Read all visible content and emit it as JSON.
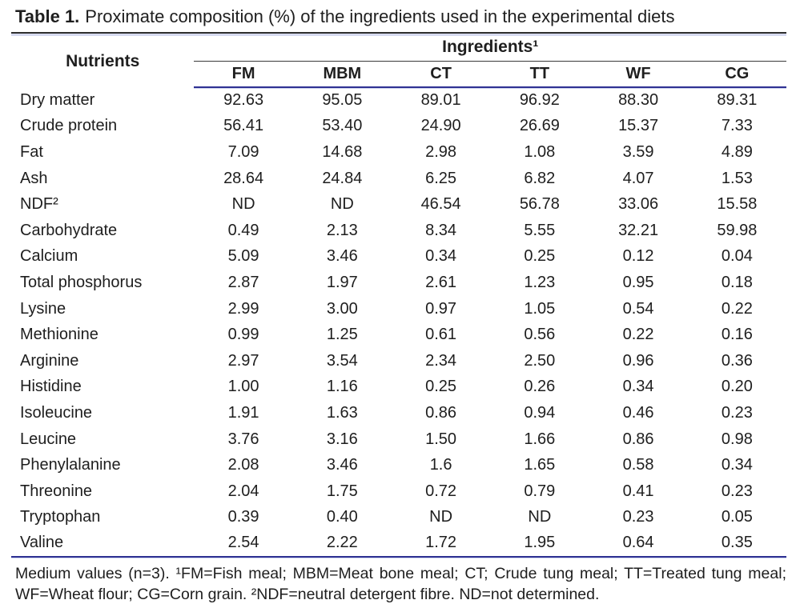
{
  "title": {
    "label": "Table 1.",
    "text": "Proximate composition (%) of the ingredients used in the experimental diets"
  },
  "table": {
    "row_header": "Nutrients",
    "group_header": "Ingredients¹",
    "columns": [
      "FM",
      "MBM",
      "CT",
      "TT",
      "WF",
      "CG"
    ],
    "rows": [
      {
        "nutrient": "Dry matter",
        "values": [
          "92.63",
          "95.05",
          "89.01",
          "96.92",
          "88.30",
          "89.31"
        ]
      },
      {
        "nutrient": "Crude protein",
        "values": [
          "56.41",
          "53.40",
          "24.90",
          "26.69",
          "15.37",
          "7.33"
        ]
      },
      {
        "nutrient": "Fat",
        "values": [
          "7.09",
          "14.68",
          "2.98",
          "1.08",
          "3.59",
          "4.89"
        ]
      },
      {
        "nutrient": "Ash",
        "values": [
          "28.64",
          "24.84",
          "6.25",
          "6.82",
          "4.07",
          "1.53"
        ]
      },
      {
        "nutrient": "NDF²",
        "values": [
          "ND",
          "ND",
          "46.54",
          "56.78",
          "33.06",
          "15.58"
        ]
      },
      {
        "nutrient": "Carbohydrate",
        "values": [
          "0.49",
          "2.13",
          "8.34",
          "5.55",
          "32.21",
          "59.98"
        ]
      },
      {
        "nutrient": "Calcium",
        "values": [
          "5.09",
          "3.46",
          "0.34",
          "0.25",
          "0.12",
          "0.04"
        ]
      },
      {
        "nutrient": "Total phosphorus",
        "values": [
          "2.87",
          "1.97",
          "2.61",
          "1.23",
          "0.95",
          "0.18"
        ]
      },
      {
        "nutrient": "Lysine",
        "values": [
          "2.99",
          "3.00",
          "0.97",
          "1.05",
          "0.54",
          "0.22"
        ]
      },
      {
        "nutrient": "Methionine",
        "values": [
          "0.99",
          "1.25",
          "0.61",
          "0.56",
          "0.22",
          "0.16"
        ]
      },
      {
        "nutrient": "Arginine",
        "values": [
          "2.97",
          "3.54",
          "2.34",
          "2.50",
          "0.96",
          "0.36"
        ]
      },
      {
        "nutrient": "Histidine",
        "values": [
          "1.00",
          "1.16",
          "0.25",
          "0.26",
          "0.34",
          "0.20"
        ]
      },
      {
        "nutrient": "Isoleucine",
        "values": [
          "1.91",
          "1.63",
          "0.86",
          "0.94",
          "0.46",
          "0.23"
        ]
      },
      {
        "nutrient": "Leucine",
        "values": [
          "3.76",
          "3.16",
          "1.50",
          "1.66",
          "0.86",
          "0.98"
        ]
      },
      {
        "nutrient": "Phenylalanine",
        "values": [
          "2.08",
          "3.46",
          "1.6",
          "1.65",
          "0.58",
          "0.34"
        ]
      },
      {
        "nutrient": "Threonine",
        "values": [
          "2.04",
          "1.75",
          "0.72",
          "0.79",
          "0.41",
          "0.23"
        ]
      },
      {
        "nutrient": "Tryptophan",
        "values": [
          "0.39",
          "0.40",
          "ND",
          "ND",
          "0.23",
          "0.05"
        ]
      },
      {
        "nutrient": "Valine",
        "values": [
          "2.54",
          "2.22",
          "1.72",
          "1.95",
          "0.64",
          "0.35"
        ]
      }
    ]
  },
  "footnote": "Medium values (n=3). ¹FM=Fish meal; MBM=Meat bone meal; CT; Crude tung meal; TT=Treated tung meal; WF=Wheat flour; CG=Corn grain. ²NDF=neutral detergent fibre. ND=not determined.",
  "colors": {
    "rule_dark": "#2f2f2f",
    "rule_navy": "#2e3192",
    "rule_navy_echo": "#ccd2ee",
    "text": "#1e1e1e"
  }
}
